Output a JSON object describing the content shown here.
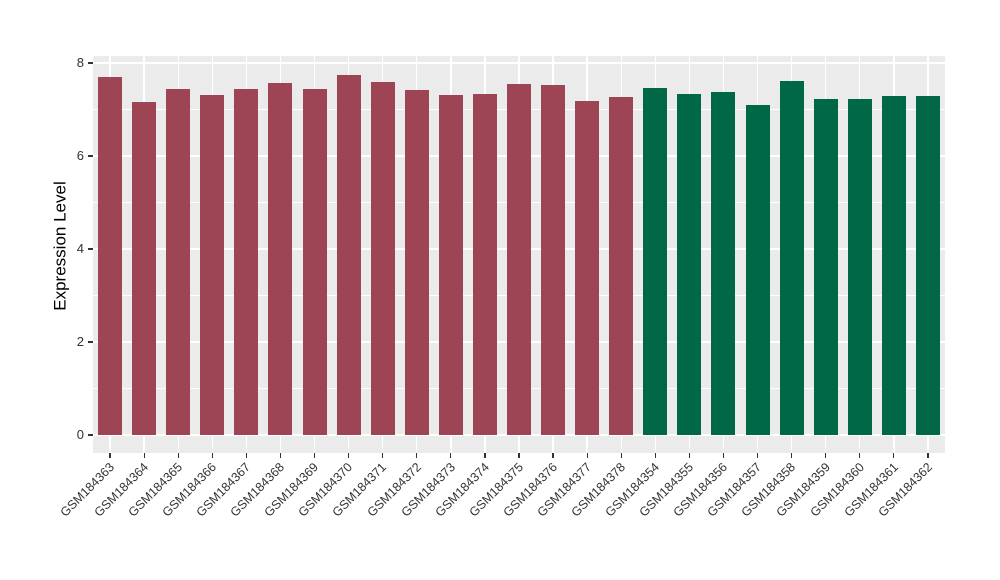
{
  "page": {
    "background": "#FFFFFF"
  },
  "chart_data": {
    "type": "bar",
    "ylabel": "Expression Level",
    "xlabel": "",
    "ylim": [
      0,
      8.15
    ],
    "yticks_major": [
      0,
      2,
      4,
      6,
      8
    ],
    "yticks_minor": [
      1,
      3,
      5,
      7
    ],
    "grid": "white major and minor lines on grey panel",
    "legend_position": "none",
    "style": {
      "panel_bg": "#EBEBEB",
      "grid_color": "#FFFFFF",
      "tick_color": "#333333",
      "axis_text_color": "#333333",
      "axis_title_color": "#000000",
      "group1_color": "#9D4455",
      "group2_color": "#006847"
    },
    "groups": [
      {
        "name": "GSM184363-GSM184378",
        "color": "#9D4455",
        "count": 16
      },
      {
        "name": "GSM184354-GSM184362",
        "color": "#006847",
        "count": 9
      }
    ],
    "bars": [
      {
        "label": "GSM184363",
        "value": 7.69,
        "color": "#9D4455"
      },
      {
        "label": "GSM184364",
        "value": 7.16,
        "color": "#9D4455"
      },
      {
        "label": "GSM184365",
        "value": 7.44,
        "color": "#9D4455"
      },
      {
        "label": "GSM184366",
        "value": 7.32,
        "color": "#9D4455"
      },
      {
        "label": "GSM184367",
        "value": 7.44,
        "color": "#9D4455"
      },
      {
        "label": "GSM184368",
        "value": 7.56,
        "color": "#9D4455"
      },
      {
        "label": "GSM184369",
        "value": 7.44,
        "color": "#9D4455"
      },
      {
        "label": "GSM184370",
        "value": 7.75,
        "color": "#9D4455"
      },
      {
        "label": "GSM184371",
        "value": 7.59,
        "color": "#9D4455"
      },
      {
        "label": "GSM184372",
        "value": 7.42,
        "color": "#9D4455"
      },
      {
        "label": "GSM184373",
        "value": 7.32,
        "color": "#9D4455"
      },
      {
        "label": "GSM184374",
        "value": 7.33,
        "color": "#9D4455"
      },
      {
        "label": "GSM184375",
        "value": 7.54,
        "color": "#9D4455"
      },
      {
        "label": "GSM184376",
        "value": 7.52,
        "color": "#9D4455"
      },
      {
        "label": "GSM184377",
        "value": 7.19,
        "color": "#9D4455"
      },
      {
        "label": "GSM184378",
        "value": 7.26,
        "color": "#9D4455"
      },
      {
        "label": "GSM184354",
        "value": 7.46,
        "color": "#006847"
      },
      {
        "label": "GSM184355",
        "value": 7.33,
        "color": "#006847"
      },
      {
        "label": "GSM184356",
        "value": 7.38,
        "color": "#006847"
      },
      {
        "label": "GSM184357",
        "value": 7.1,
        "color": "#006847"
      },
      {
        "label": "GSM184358",
        "value": 7.61,
        "color": "#006847"
      },
      {
        "label": "GSM184359",
        "value": 7.23,
        "color": "#006847"
      },
      {
        "label": "GSM184360",
        "value": 7.23,
        "color": "#006847"
      },
      {
        "label": "GSM184361",
        "value": 7.28,
        "color": "#006847"
      },
      {
        "label": "GSM184362",
        "value": 7.28,
        "color": "#006847"
      }
    ]
  }
}
